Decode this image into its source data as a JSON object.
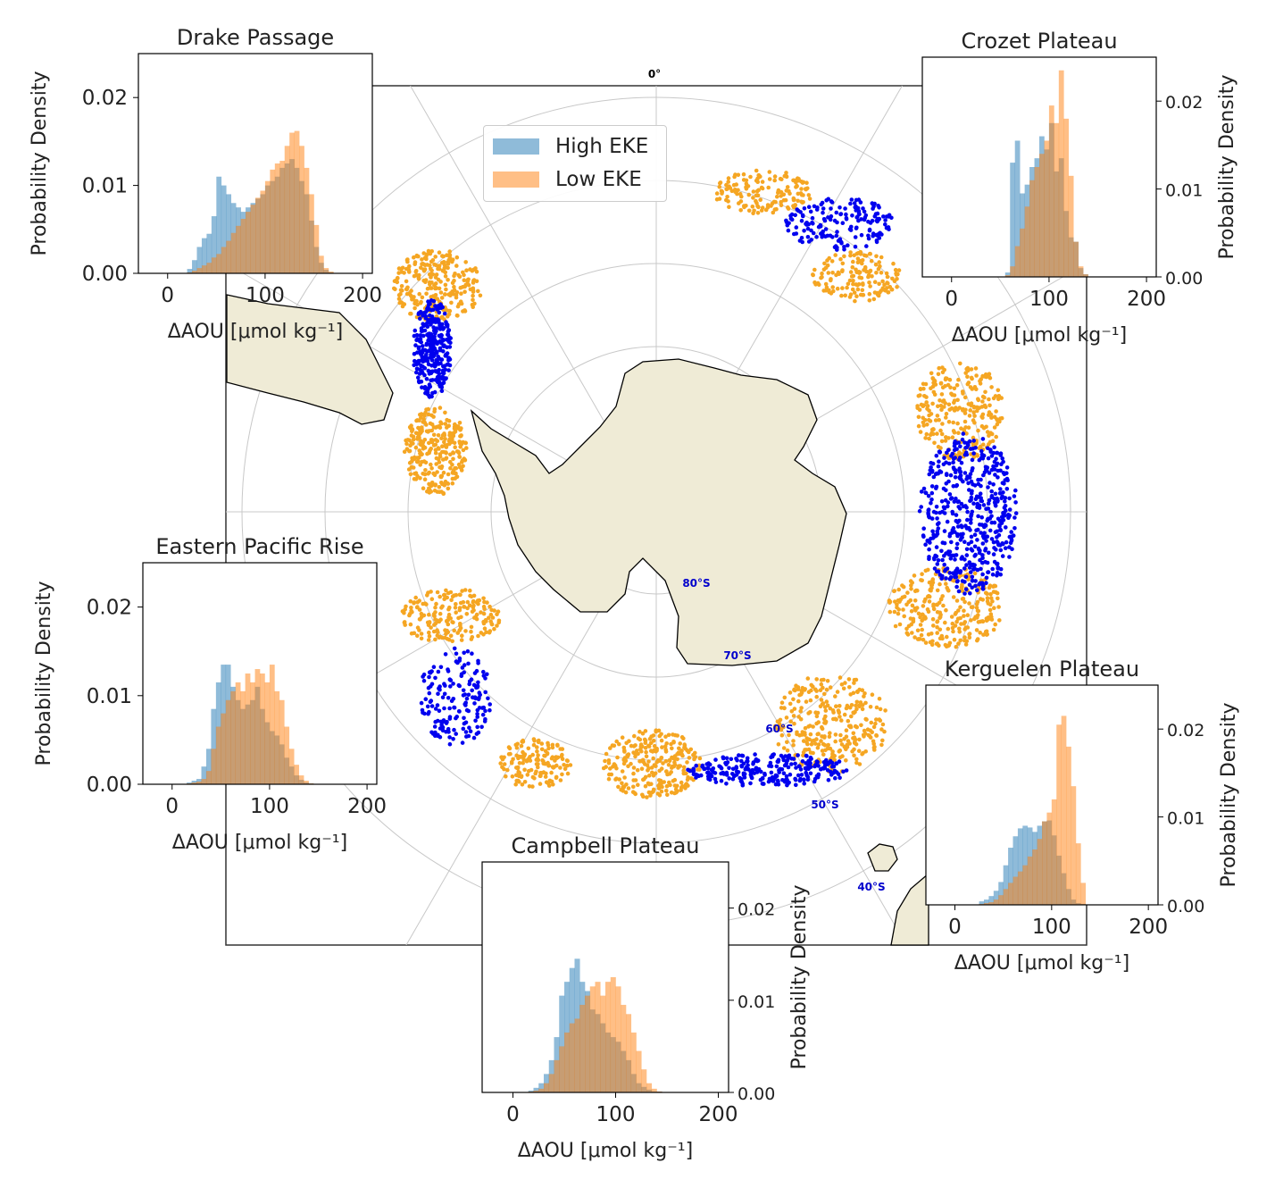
{
  "colors": {
    "high_eke_hist": "#1f77b4",
    "low_eke_hist": "#ff7f0e",
    "high_eke_points": "#0000ee",
    "low_eke_points": "#f5a623",
    "land": "#efebd6",
    "graticule": "#c8c8c8",
    "lat_label": "#0000cc"
  },
  "map": {
    "meridian_label": "0°",
    "lat_labels": [
      "80°S",
      "70°S",
      "60°S",
      "50°S",
      "40°S"
    ],
    "legend": [
      {
        "label": "High EKE",
        "color": "#1f77b4"
      },
      {
        "label": "Low EKE",
        "color": "#ff7f0e"
      }
    ]
  },
  "chart_data": [
    {
      "type": "bar",
      "title": "Drake Passage",
      "xlabel": "ΔAOU [μmol kg⁻¹]",
      "ylabel": "Probability Density",
      "xlim": [
        -30,
        210
      ],
      "ylim": [
        0,
        0.025
      ],
      "xticks": [
        0,
        100,
        200
      ],
      "yticks": [
        0.0,
        0.01,
        0.02
      ],
      "ytick_labels": [
        "0.00",
        "0.01",
        "0.02"
      ],
      "bin_start": 20,
      "bin_width": 5,
      "series": [
        {
          "name": "High EKE",
          "values": [
            0.0005,
            0.0015,
            0.003,
            0.004,
            0.0045,
            0.0065,
            0.011,
            0.01,
            0.009,
            0.008,
            0.0075,
            0.007,
            0.0075,
            0.008,
            0.0085,
            0.009,
            0.01,
            0.0105,
            0.011,
            0.012,
            0.0125,
            0.013,
            0.012,
            0.0105,
            0.009,
            0.006,
            0.003,
            0.0012,
            0.0004,
            0.0001
          ]
        },
        {
          "name": "Low EKE",
          "values": [
            0.0001,
            0.0003,
            0.0006,
            0.0009,
            0.0012,
            0.0018,
            0.0022,
            0.003,
            0.0037,
            0.0046,
            0.0054,
            0.0062,
            0.007,
            0.0078,
            0.0086,
            0.0094,
            0.0105,
            0.0118,
            0.0125,
            0.0128,
            0.0145,
            0.016,
            0.0162,
            0.0145,
            0.012,
            0.009,
            0.0055,
            0.002,
            0.0006,
            0.0002
          ]
        }
      ]
    },
    {
      "type": "bar",
      "title": "Crozet Plateau",
      "xlabel": "ΔAOU [μmol kg⁻¹]",
      "ylabel": "Probability Density",
      "xlim": [
        -30,
        210
      ],
      "ylim": [
        0,
        0.025
      ],
      "xticks": [
        0,
        100,
        200
      ],
      "yticks": [
        0.0,
        0.01,
        0.02
      ],
      "ytick_labels": [
        "0.00",
        "0.01",
        "0.02"
      ],
      "bin_start": 55,
      "bin_width": 5,
      "series": [
        {
          "name": "High EKE",
          "values": [
            0.0005,
            0.013,
            0.0155,
            0.0095,
            0.0105,
            0.0125,
            0.0135,
            0.016,
            0.0145,
            0.0175,
            0.012,
            0.0135,
            0.0075,
            0.0045,
            0.004,
            0.001,
            0.0003
          ]
        },
        {
          "name": "Low EKE",
          "values": [
            0.0002,
            0.0012,
            0.0035,
            0.0055,
            0.008,
            0.011,
            0.0125,
            0.014,
            0.0155,
            0.0195,
            0.0175,
            0.0235,
            0.018,
            0.0115,
            0.004,
            0.0012,
            0.0003
          ]
        }
      ]
    },
    {
      "type": "bar",
      "title": "Eastern Pacific Rise",
      "xlabel": "ΔAOU [μmol kg⁻¹]",
      "ylabel": "Probability Density",
      "xlim": [
        -30,
        210
      ],
      "ylim": [
        0,
        0.025
      ],
      "xticks": [
        0,
        100,
        200
      ],
      "yticks": [
        0.0,
        0.01,
        0.02
      ],
      "ytick_labels": [
        "0.00",
        "0.01",
        "0.02"
      ],
      "bin_start": 15,
      "bin_width": 5,
      "series": [
        {
          "name": "High EKE",
          "values": [
            0.0002,
            0.0004,
            0.0006,
            0.002,
            0.004,
            0.0085,
            0.0115,
            0.0135,
            0.0135,
            0.011,
            0.0095,
            0.0085,
            0.009,
            0.0095,
            0.011,
            0.0085,
            0.007,
            0.006,
            0.0055,
            0.0045,
            0.003,
            0.002,
            0.001,
            0.0005,
            0.0002,
            0.0001
          ]
        },
        {
          "name": "Low EKE",
          "values": [
            0.0001,
            0.0002,
            0.0003,
            0.0006,
            0.0015,
            0.004,
            0.0065,
            0.008,
            0.0095,
            0.0105,
            0.0115,
            0.0105,
            0.0125,
            0.0115,
            0.013,
            0.0125,
            0.0115,
            0.0135,
            0.0105,
            0.0095,
            0.0065,
            0.004,
            0.0022,
            0.001,
            0.0004,
            0.0001
          ]
        }
      ]
    },
    {
      "type": "bar",
      "title": "Kerguelen Plateau",
      "xlabel": "ΔAOU [μmol kg⁻¹]",
      "ylabel": "Probability Density",
      "xlim": [
        -30,
        210
      ],
      "ylim": [
        0,
        0.025
      ],
      "xticks": [
        0,
        100,
        200
      ],
      "yticks": [
        0.0,
        0.01,
        0.02
      ],
      "ytick_labels": [
        "0.00",
        "0.01",
        "0.02"
      ],
      "bin_start": 25,
      "bin_width": 5,
      "series": [
        {
          "name": "High EKE",
          "values": [
            0.0004,
            0.0006,
            0.001,
            0.0016,
            0.0026,
            0.0045,
            0.0065,
            0.0078,
            0.0087,
            0.009,
            0.0088,
            0.0083,
            0.009,
            0.0095,
            0.0096,
            0.0079,
            0.0056,
            0.0036,
            0.0018,
            0.0006,
            0.0002,
            0.0001
          ]
        },
        {
          "name": "Low EKE",
          "values": [
            0.0001,
            0.0002,
            0.0003,
            0.0006,
            0.0011,
            0.0018,
            0.0025,
            0.0032,
            0.0038,
            0.0045,
            0.0055,
            0.0063,
            0.0075,
            0.0095,
            0.0105,
            0.012,
            0.0205,
            0.0215,
            0.018,
            0.0135,
            0.007,
            0.0025
          ]
        }
      ]
    },
    {
      "type": "bar",
      "title": "Campbell Plateau",
      "xlabel": "ΔAOU [μmol kg⁻¹]",
      "ylabel": "Probability Density",
      "xlim": [
        -30,
        210
      ],
      "ylim": [
        0,
        0.025
      ],
      "xticks": [
        0,
        100,
        200
      ],
      "yticks": [
        0.0,
        0.01,
        0.02
      ],
      "ytick_labels": [
        "0.00",
        "0.01",
        "0.02"
      ],
      "bin_start": 15,
      "bin_width": 5,
      "series": [
        {
          "name": "High EKE",
          "values": [
            0.0002,
            0.0005,
            0.001,
            0.002,
            0.0035,
            0.006,
            0.0105,
            0.012,
            0.0135,
            0.0145,
            0.012,
            0.011,
            0.009,
            0.0085,
            0.0075,
            0.0065,
            0.006,
            0.0055,
            0.0045,
            0.0035,
            0.002,
            0.001,
            0.0006,
            0.0003,
            0.0001,
            0.0001
          ]
        },
        {
          "name": "Low EKE",
          "values": [
            0.0001,
            0.0002,
            0.0004,
            0.001,
            0.002,
            0.0035,
            0.005,
            0.0065,
            0.0075,
            0.008,
            0.0095,
            0.0105,
            0.0115,
            0.012,
            0.0105,
            0.012,
            0.0125,
            0.0115,
            0.0095,
            0.0085,
            0.0065,
            0.0045,
            0.0025,
            0.001,
            0.0004,
            0.0001
          ]
        }
      ]
    }
  ]
}
